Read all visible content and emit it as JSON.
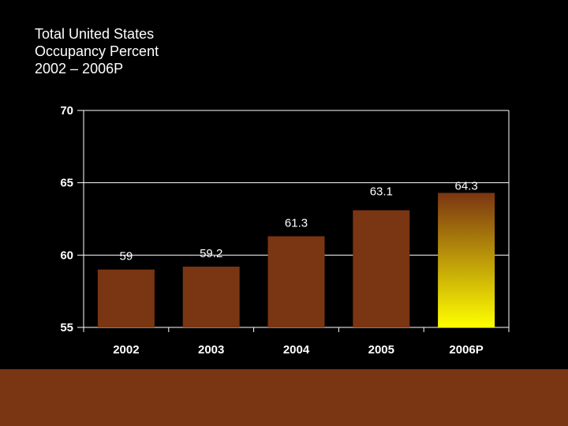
{
  "title": {
    "line1": "Total United States",
    "line2": "Occupancy Percent",
    "line3": "2002 – 2006P"
  },
  "colors": {
    "background": "#000000",
    "bar": "#7a3512",
    "highlight_top": "#7a3512",
    "highlight_bottom": "#ffff00",
    "text": "#ffffff",
    "grid": "#ffffff",
    "footer": "#7a3512"
  },
  "chart_data": {
    "type": "bar",
    "title": "Total United States Occupancy Percent 2002 – 2006P",
    "categories": [
      "2002",
      "2003",
      "2004",
      "2005",
      "2006P"
    ],
    "values": [
      59,
      59.2,
      61.3,
      63.1,
      64.3
    ],
    "data_labels": [
      "59",
      "59.2",
      "61.3",
      "63.1",
      "64.3"
    ],
    "highlighted": [
      "2006P"
    ],
    "xlabel": "",
    "ylabel": "",
    "ylim": [
      55,
      70
    ],
    "yticks": [
      55,
      60,
      65,
      70
    ],
    "grid": true
  }
}
